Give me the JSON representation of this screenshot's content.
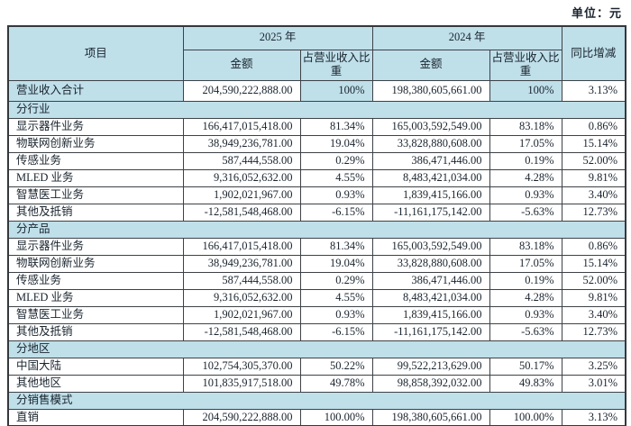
{
  "unit_label": "单位：元",
  "colors": {
    "cell_blue": "#bfdfe9",
    "border": "#3d4247",
    "text": "#1a242e",
    "page_bg": "#ffffff"
  },
  "table": {
    "header": {
      "item": "项目",
      "y2025": "2025 年",
      "y2024": "2024 年",
      "amount": "金额",
      "share": "占营业收入比重",
      "yoy": "同比增减"
    },
    "rows": [
      {
        "type": "total",
        "label": "营业收入合计",
        "a2025": "204,590,222,888.00",
        "s2025": "100%",
        "a2024": "198,380,605,661.00",
        "s2024": "100%",
        "yoy": "3.13%"
      },
      {
        "type": "section",
        "label": "分行业"
      },
      {
        "type": "data",
        "label": "显示器件业务",
        "a2025": "166,417,015,418.00",
        "s2025": "81.34%",
        "a2024": "165,003,592,549.00",
        "s2024": "83.18%",
        "yoy": "0.86%"
      },
      {
        "type": "data",
        "label": "物联网创新业务",
        "a2025": "38,949,236,781.00",
        "s2025": "19.04%",
        "a2024": "33,828,880,608.00",
        "s2024": "17.05%",
        "yoy": "15.14%"
      },
      {
        "type": "data",
        "label": "传感业务",
        "a2025": "587,444,558.00",
        "s2025": "0.29%",
        "a2024": "386,471,446.00",
        "s2024": "0.19%",
        "yoy": "52.00%"
      },
      {
        "type": "data",
        "label": "MLED 业务",
        "a2025": "9,316,052,632.00",
        "s2025": "4.55%",
        "a2024": "8,483,421,034.00",
        "s2024": "4.28%",
        "yoy": "9.81%"
      },
      {
        "type": "data",
        "label": "智慧医工业务",
        "a2025": "1,902,021,967.00",
        "s2025": "0.93%",
        "a2024": "1,839,415,166.00",
        "s2024": "0.93%",
        "yoy": "3.40%"
      },
      {
        "type": "data",
        "label": "其他及抵销",
        "a2025": "-12,581,548,468.00",
        "s2025": "-6.15%",
        "a2024": "-11,161,175,142.00",
        "s2024": "-5.63%",
        "yoy": "12.73%"
      },
      {
        "type": "section",
        "label": "分产品"
      },
      {
        "type": "data",
        "label": "显示器件业务",
        "a2025": "166,417,015,418.00",
        "s2025": "81.34%",
        "a2024": "165,003,592,549.00",
        "s2024": "83.18%",
        "yoy": "0.86%"
      },
      {
        "type": "data",
        "label": "物联网创新业务",
        "a2025": "38,949,236,781.00",
        "s2025": "19.04%",
        "a2024": "33,828,880,608.00",
        "s2024": "17.05%",
        "yoy": "15.14%"
      },
      {
        "type": "data",
        "label": "传感业务",
        "a2025": "587,444,558.00",
        "s2025": "0.29%",
        "a2024": "386,471,446.00",
        "s2024": "0.19%",
        "yoy": "52.00%"
      },
      {
        "type": "data",
        "label": "MLED 业务",
        "a2025": "9,316,052,632.00",
        "s2025": "4.55%",
        "a2024": "8,483,421,034.00",
        "s2024": "4.28%",
        "yoy": "9.81%"
      },
      {
        "type": "data",
        "label": "智慧医工业务",
        "a2025": "1,902,021,967.00",
        "s2025": "0.93%",
        "a2024": "1,839,415,166.00",
        "s2024": "0.93%",
        "yoy": "3.40%"
      },
      {
        "type": "data",
        "label": "其他及抵销",
        "a2025": "-12,581,548,468.00",
        "s2025": "-6.15%",
        "a2024": "-11,161,175,142.00",
        "s2024": "-5.63%",
        "yoy": "12.73%"
      },
      {
        "type": "section",
        "label": "分地区"
      },
      {
        "type": "data",
        "label": "中国大陆",
        "a2025": "102,754,305,370.00",
        "s2025": "50.22%",
        "a2024": "99,522,213,629.00",
        "s2024": "50.17%",
        "yoy": "3.25%"
      },
      {
        "type": "data",
        "label": "其他地区",
        "a2025": "101,835,917,518.00",
        "s2025": "49.78%",
        "a2024": "98,858,392,032.00",
        "s2024": "49.83%",
        "yoy": "3.01%"
      },
      {
        "type": "section",
        "label": "分销售模式"
      },
      {
        "type": "data",
        "label": "直销",
        "a2025": "204,590,222,888.00",
        "s2025": "100.00%",
        "a2024": "198,380,605,661.00",
        "s2024": "100.00%",
        "yoy": "3.13%"
      }
    ]
  }
}
